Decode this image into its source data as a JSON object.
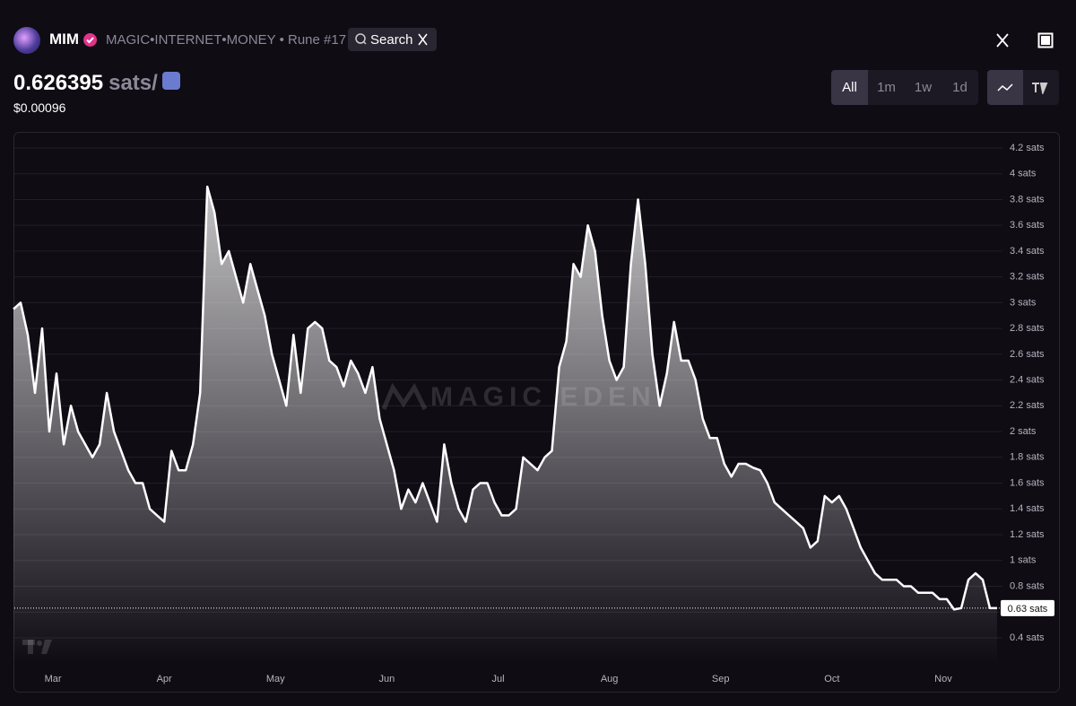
{
  "header": {
    "ticker": "MIM",
    "name": "MAGIC•INTERNET•MONEY • Rune #17",
    "search": "Search"
  },
  "price": {
    "value": "0.626395",
    "unit": "sats/",
    "usd": "$0.00096"
  },
  "ranges": [
    "All",
    "1m",
    "1w",
    "1d"
  ],
  "chart_data": {
    "type": "area",
    "watermark": "MAGIC EDEN",
    "color": "#ffffff",
    "values": [
      2.95,
      3.0,
      2.75,
      2.3,
      2.8,
      2.0,
      2.45,
      1.9,
      2.2,
      2.0,
      1.9,
      1.8,
      1.9,
      2.3,
      2.0,
      1.85,
      1.7,
      1.6,
      1.6,
      1.4,
      1.35,
      1.3,
      1.85,
      1.7,
      1.7,
      1.9,
      2.3,
      3.9,
      3.7,
      3.3,
      3.4,
      3.2,
      3.0,
      3.3,
      3.1,
      2.9,
      2.6,
      2.4,
      2.2,
      2.75,
      2.3,
      2.8,
      2.85,
      2.8,
      2.55,
      2.5,
      2.35,
      2.55,
      2.45,
      2.3,
      2.5,
      2.1,
      1.9,
      1.7,
      1.4,
      1.55,
      1.45,
      1.6,
      1.45,
      1.3,
      1.9,
      1.6,
      1.4,
      1.3,
      1.55,
      1.6,
      1.6,
      1.45,
      1.35,
      1.35,
      1.4,
      1.8,
      1.75,
      1.7,
      1.8,
      1.85,
      2.5,
      2.7,
      3.3,
      3.2,
      3.6,
      3.4,
      2.9,
      2.55,
      2.4,
      2.5,
      3.3,
      3.8,
      3.3,
      2.6,
      2.2,
      2.45,
      2.85,
      2.55,
      2.55,
      2.4,
      2.1,
      1.95,
      1.95,
      1.75,
      1.65,
      1.75,
      1.75,
      1.72,
      1.7,
      1.6,
      1.45,
      1.4,
      1.35,
      1.3,
      1.25,
      1.1,
      1.15,
      1.5,
      1.45,
      1.5,
      1.4,
      1.25,
      1.1,
      1.0,
      0.9,
      0.85,
      0.85,
      0.85,
      0.8,
      0.8,
      0.75,
      0.75,
      0.75,
      0.7,
      0.7,
      0.62,
      0.63,
      0.85,
      0.9,
      0.85,
      0.63,
      0.63
    ],
    "xlim": [
      0,
      137
    ],
    "xticks": [
      {
        "value": 5.5,
        "label": "Mar"
      },
      {
        "value": 21,
        "label": "Apr"
      },
      {
        "value": 36.5,
        "label": "May"
      },
      {
        "value": 52,
        "label": "Jun"
      },
      {
        "value": 67.5,
        "label": "Jul"
      },
      {
        "value": 83,
        "label": "Aug"
      },
      {
        "value": 98.5,
        "label": "Sep"
      },
      {
        "value": 114,
        "label": "Oct"
      },
      {
        "value": 129.5,
        "label": "Nov"
      }
    ],
    "ylim": [
      0.2,
      4.3
    ],
    "yticks": [
      {
        "value": 0.4,
        "label": "0.4 sats"
      },
      {
        "value": 0.6,
        "label": "0.6 sats"
      },
      {
        "value": 0.8,
        "label": "0.8 sats"
      },
      {
        "value": 1,
        "label": "1 sats"
      },
      {
        "value": 1.2,
        "label": "1.2 sats"
      },
      {
        "value": 1.4,
        "label": "1.4 sats"
      },
      {
        "value": 1.6,
        "label": "1.6 sats"
      },
      {
        "value": 1.8,
        "label": "1.8 sats"
      },
      {
        "value": 2,
        "label": "2 sats"
      },
      {
        "value": 2.2,
        "label": "2.2 sats"
      },
      {
        "value": 2.4,
        "label": "2.4 sats"
      },
      {
        "value": 2.6,
        "label": "2.6 sats"
      },
      {
        "value": 2.8,
        "label": "2.8 sats"
      },
      {
        "value": 3,
        "label": "3 sats"
      },
      {
        "value": 3.2,
        "label": "3.2 sats"
      },
      {
        "value": 3.4,
        "label": "3.4 sats"
      },
      {
        "value": 3.6,
        "label": "3.6 sats"
      },
      {
        "value": 3.8,
        "label": "3.8 sats"
      },
      {
        "value": 4,
        "label": "4 sats"
      },
      {
        "value": 4.2,
        "label": "4.2 sats"
      }
    ],
    "grid": true,
    "last_value": 0.63,
    "last_label": "0.63 sats"
  }
}
